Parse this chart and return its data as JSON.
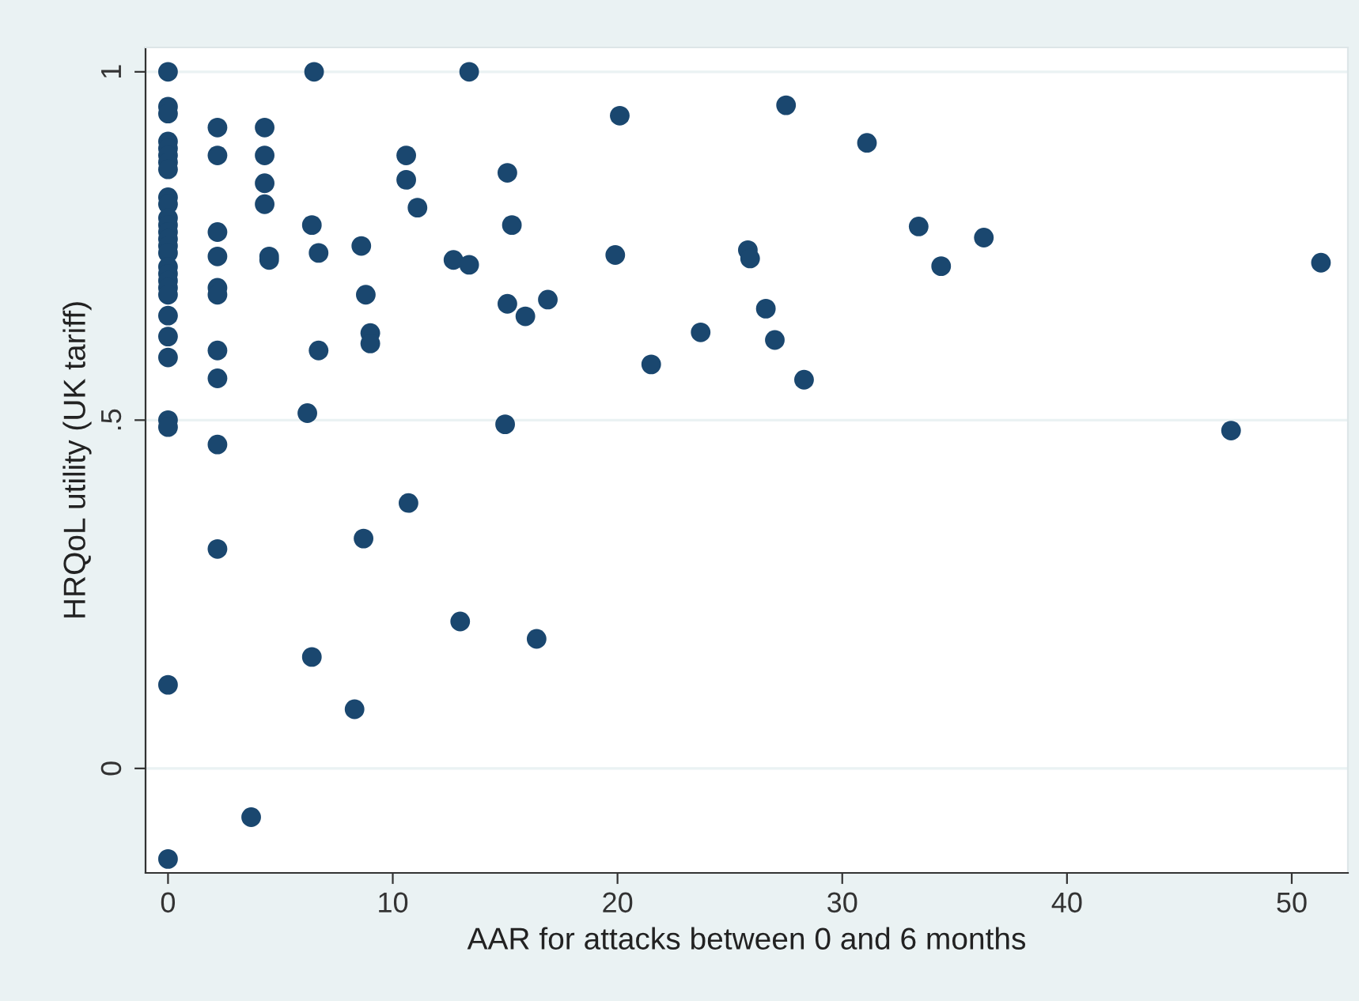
{
  "chart_data": {
    "type": "scatter",
    "xlabel": "AAR for attacks between 0 and 6 months",
    "ylabel": "HRQoL utility (UK tariff)",
    "x": [
      0,
      0,
      0,
      0,
      0,
      0,
      0,
      0,
      0,
      0,
      0,
      0,
      0,
      0,
      0,
      0,
      0,
      0,
      0,
      0,
      0,
      0,
      0,
      0,
      0,
      0,
      0,
      0,
      2.2,
      2.2,
      2.2,
      2.2,
      2.2,
      2.2,
      2.2,
      2.2,
      2.2,
      2.2,
      4.3,
      4.3,
      4.3,
      4.3,
      4.5,
      4.5,
      6.5,
      6.4,
      6.7,
      6.7,
      6.2,
      6.4,
      8.6,
      8.8,
      9.0,
      9.0,
      8.3,
      8.7,
      3.7,
      13.4,
      20.1,
      10.6,
      10.6,
      11.1,
      15.1,
      15.3,
      12.7,
      13.4,
      19.9,
      15.1,
      15.9,
      16.9,
      23.7,
      21.5,
      15.0,
      10.7,
      13.0,
      16.4,
      25.8,
      25.9,
      26.6,
      27.0,
      28.3,
      34.4,
      36.3,
      51.3,
      47.3,
      27.5,
      31.1,
      33.4
    ],
    "values": [
      1.0,
      0.95,
      0.94,
      0.9,
      0.89,
      0.88,
      0.87,
      0.86,
      0.82,
      0.81,
      0.79,
      0.78,
      0.77,
      0.76,
      0.75,
      0.74,
      0.72,
      0.71,
      0.7,
      0.69,
      0.68,
      0.65,
      0.62,
      0.59,
      0.5,
      0.49,
      0.12,
      -0.13,
      0.92,
      0.88,
      0.77,
      0.735,
      0.69,
      0.68,
      0.6,
      0.56,
      0.465,
      0.315,
      0.92,
      0.88,
      0.84,
      0.81,
      0.73,
      0.735,
      1.0,
      0.78,
      0.74,
      0.6,
      0.51,
      0.16,
      0.75,
      0.68,
      0.625,
      0.61,
      0.085,
      0.33,
      -0.07,
      1.0,
      0.937,
      0.88,
      0.845,
      0.805,
      0.855,
      0.78,
      0.73,
      0.723,
      0.737,
      0.667,
      0.649,
      0.673,
      0.626,
      0.58,
      0.494,
      0.381,
      0.211,
      0.186,
      0.744,
      0.732,
      0.66,
      0.615,
      0.558,
      0.721,
      0.762,
      0.726,
      0.485,
      0.952,
      0.898,
      0.778
    ],
    "color": "#1a476f",
    "marker": "circle",
    "xlim": [
      -1,
      52.5
    ],
    "xticks": [
      0,
      10,
      20,
      30,
      40,
      50
    ],
    "ylim": [
      -0.15,
      1.035
    ],
    "yticks": [
      0,
      {
        "value": 0.5,
        "label": ".5"
      },
      1
    ],
    "grid": "y",
    "legend": false
  }
}
